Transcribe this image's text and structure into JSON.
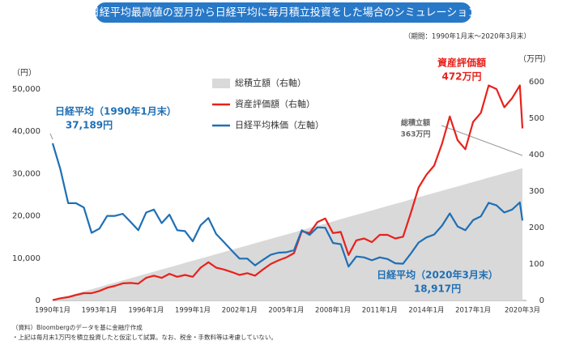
{
  "chart_data": {
    "type": "line",
    "title": "日経平均最高値の翌月から日経平均に毎月積立投資をした場合のシミュレーション",
    "subtitle": "（期間：1990年1月末～2020年3月末）",
    "y_label": "（円）",
    "y2_label": "（万円）",
    "x": [
      "1990-01",
      "1990-07",
      "1991-01",
      "1991-07",
      "1992-01",
      "1992-07",
      "1993-01",
      "1993-07",
      "1994-01",
      "1994-07",
      "1995-01",
      "1995-07",
      "1996-01",
      "1996-07",
      "1997-01",
      "1997-07",
      "1998-01",
      "1998-07",
      "1999-01",
      "1999-07",
      "2000-01",
      "2000-07",
      "2001-01",
      "2001-07",
      "2002-01",
      "2002-07",
      "2003-01",
      "2003-07",
      "2004-01",
      "2004-07",
      "2005-01",
      "2005-07",
      "2006-01",
      "2006-07",
      "2007-01",
      "2007-07",
      "2008-01",
      "2008-07",
      "2009-01",
      "2009-07",
      "2010-01",
      "2010-07",
      "2011-01",
      "2011-07",
      "2012-01",
      "2012-07",
      "2013-01",
      "2013-07",
      "2014-01",
      "2014-07",
      "2015-01",
      "2015-07",
      "2016-01",
      "2016-07",
      "2017-01",
      "2017-07",
      "2018-01",
      "2018-07",
      "2019-01",
      "2019-07",
      "2020-01",
      "2020-03"
    ],
    "xlim": [
      "1990-01",
      "2020-03"
    ],
    "xticks": [
      {
        "value": "1990-01",
        "label": "1990年1月"
      },
      {
        "value": "1993-01",
        "label": "1993年1月"
      },
      {
        "value": "1996-01",
        "label": "1996年1月"
      },
      {
        "value": "1999-01",
        "label": "1999年1月"
      },
      {
        "value": "2002-01",
        "label": "2002年1月"
      },
      {
        "value": "2005-01",
        "label": "2005年1月"
      },
      {
        "value": "2008-01",
        "label": "2008年1月"
      },
      {
        "value": "2011-01",
        "label": "2011年1月"
      },
      {
        "value": "2014-01",
        "label": "2014年1月"
      },
      {
        "value": "2017-01",
        "label": "2017年1月"
      },
      {
        "value": "2020-03",
        "label": "2020年3月"
      }
    ],
    "ylim": [
      0,
      50000
    ],
    "yticks": [
      0,
      {
        "value": 10000,
        "label": "10,000"
      },
      {
        "value": 20000,
        "label": "20,000"
      },
      {
        "value": 30000,
        "label": "30,000"
      },
      {
        "value": 40000,
        "label": "40,000"
      },
      {
        "value": 50000,
        "label": "50,000"
      }
    ],
    "y2lim": [
      0,
      600
    ],
    "y2ticks": [
      0,
      100,
      200,
      300,
      400,
      500,
      600
    ],
    "series": [
      {
        "name": "総積立額（右軸）",
        "color": "#d9d9d9",
        "kind": "area",
        "axis": "y2",
        "values": [
          1,
          7,
          13,
          19,
          25,
          31,
          37,
          43,
          49,
          55,
          61,
          67,
          73,
          79,
          85,
          91,
          97,
          103,
          109,
          115,
          121,
          127,
          133,
          139,
          145,
          151,
          157,
          163,
          169,
          175,
          181,
          187,
          193,
          199,
          205,
          211,
          217,
          223,
          229,
          235,
          241,
          247,
          253,
          259,
          265,
          271,
          277,
          283,
          289,
          295,
          301,
          307,
          313,
          319,
          325,
          331,
          337,
          343,
          349,
          355,
          361,
          363
        ]
      },
      {
        "name": "資産評価額（右軸）",
        "color": "#e8211c",
        "kind": "line",
        "axis": "y2",
        "values": [
          1,
          6,
          9,
          15,
          20,
          20,
          26,
          35,
          40,
          47,
          48,
          46,
          62,
          68,
          62,
          73,
          65,
          70,
          65,
          90,
          105,
          90,
          85,
          78,
          70,
          75,
          68,
          85,
          100,
          110,
          118,
          130,
          190,
          185,
          215,
          225,
          185,
          188,
          125,
          165,
          170,
          160,
          180,
          180,
          170,
          175,
          240,
          310,
          345,
          370,
          430,
          505,
          440,
          415,
          490,
          515,
          590,
          580,
          530,
          555,
          590,
          472
        ]
      },
      {
        "name": "日経平均株価（左軸）",
        "color": "#1f6fb5",
        "kind": "line",
        "axis": "y",
        "values": [
          37189,
          31000,
          23000,
          23000,
          22000,
          16000,
          17000,
          20000,
          20000,
          20500,
          18600,
          16600,
          20800,
          21500,
          18300,
          20300,
          16600,
          16400,
          14000,
          17800,
          19500,
          15700,
          13800,
          11800,
          9900,
          9900,
          8300,
          9600,
          10800,
          11300,
          11400,
          11900,
          16600,
          15500,
          17300,
          17200,
          13600,
          13300,
          8000,
          10400,
          10200,
          9500,
          10200,
          9800,
          8800,
          8700,
          11100,
          13700,
          14900,
          15600,
          17700,
          20600,
          17500,
          16600,
          19000,
          19900,
          23100,
          22500,
          20800,
          21500,
          23200,
          18917
        ]
      }
    ],
    "annotations": [
      {
        "text": "日経平均（1990年1月末）",
        "color": "#1f6fb5"
      },
      {
        "text": "37,189円",
        "color": "#1f6fb5"
      },
      {
        "text": "資産評価額",
        "color": "#e8211c"
      },
      {
        "text": "472万円",
        "color": "#e8211c"
      },
      {
        "text": "総積立額",
        "color": "#666666"
      },
      {
        "text": "363万円",
        "color": "#666666"
      },
      {
        "text": "日経平均（2020年3月末）",
        "color": "#1f6fb5"
      },
      {
        "text": "18,917円",
        "color": "#1f6fb5"
      }
    ],
    "notes": [
      "（資料）Bloombergのデータを基に金融庁作成",
      "・上記は毎月末1万円を積立投資したと仮定して試算。なお、税金・手数料等は考慮していない。"
    ]
  }
}
